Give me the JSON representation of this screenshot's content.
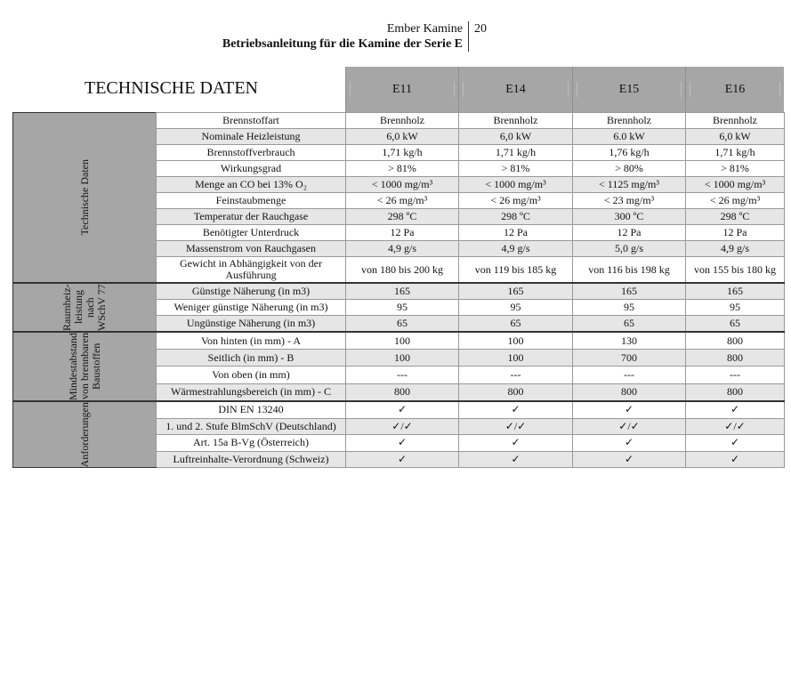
{
  "header": {
    "brand": "Ember Kamine",
    "subtitle": "Betriebsanleitung für die Kamine der Serie E",
    "page_number": "20"
  },
  "title": "TECHNISCHE DATEN",
  "models": [
    "E11",
    "E14",
    "E15",
    "E16"
  ],
  "groups": [
    {
      "category": "Technische Daten",
      "rows": [
        {
          "label": "Brennstoffart",
          "values": [
            "Brennholz",
            "Brennholz",
            "Brennholz",
            "Brennholz"
          ],
          "shaded": false
        },
        {
          "label": "Nominale Heizleistung",
          "values": [
            "6,0 kW",
            "6,0 kW",
            "6.0 kW",
            "6,0 kW"
          ],
          "shaded": true
        },
        {
          "label": "Brennstoffverbrauch",
          "values": [
            "1,71 kg/h",
            "1,71 kg/h",
            "1,76 kg/h",
            "1,71 kg/h"
          ],
          "shaded": false
        },
        {
          "label": "Wirkungsgrad",
          "values": [
            "> 81%",
            "> 81%",
            "> 80%",
            "> 81%"
          ],
          "shaded": false
        },
        {
          "label": "Menge an CO bei 13% O₂",
          "values": [
            "< 1000 mg/m³",
            "< 1000 mg/m³",
            "< 1125 mg/m³",
            "< 1000 mg/m³"
          ],
          "shaded": true
        },
        {
          "label": "Feinstaubmenge",
          "values": [
            "< 26 mg/m³",
            "< 26 mg/m³",
            "< 23 mg/m³",
            "< 26 mg/m³"
          ],
          "shaded": false
        },
        {
          "label": "Temperatur der Rauchgase",
          "values": [
            "298 ºC",
            "298 ºC",
            "300 ºC",
            "298 ºC"
          ],
          "shaded": true
        },
        {
          "label": "Benötigter Unterdruck",
          "values": [
            "12 Pa",
            "12 Pa",
            "12 Pa",
            "12 Pa"
          ],
          "shaded": false
        },
        {
          "label": "Massenstrom von Rauchgasen",
          "values": [
            "4,9 g/s",
            "4,9 g/s",
            "5,0 g/s",
            "4,9 g/s"
          ],
          "shaded": true
        },
        {
          "label": "Gewicht in Abhängigkeit von der Ausführung",
          "values": [
            "von 180 bis 200 kg",
            "von 119 bis 185 kg",
            "von 116 bis 198 kg",
            "von 155 bis 180 kg"
          ],
          "shaded": false,
          "tall": true
        }
      ]
    },
    {
      "category": "Raumheiz-leistung nach WSchV 77",
      "rows": [
        {
          "label": "Günstige Näherung (in m3)",
          "values": [
            "165",
            "165",
            "165",
            "165"
          ],
          "shaded": true
        },
        {
          "label": "Weniger günstige Näherung (in m3)",
          "values": [
            "95",
            "95",
            "95",
            "95"
          ],
          "shaded": false
        },
        {
          "label": "Ungünstige Näherung (in m3)",
          "values": [
            "65",
            "65",
            "65",
            "65"
          ],
          "shaded": true
        }
      ]
    },
    {
      "category": "Mindestabstand von brennbaren Baustoffen",
      "rows": [
        {
          "label": "Von hinten (in mm) - A",
          "values": [
            "100",
            "100",
            "130",
            "800"
          ],
          "shaded": false
        },
        {
          "label": "Seitlich (in mm) - B",
          "values": [
            "100",
            "100",
            "700",
            "800"
          ],
          "shaded": true
        },
        {
          "label": "Von oben (in mm)",
          "values": [
            "---",
            "---",
            "---",
            "---"
          ],
          "shaded": false
        },
        {
          "label": "Wärmestrahlungsbereich (in mm) - C",
          "values": [
            "800",
            "800",
            "800",
            "800"
          ],
          "shaded": true
        }
      ]
    },
    {
      "category": "Anforderungen",
      "rows": [
        {
          "label": "DIN EN 13240",
          "values": [
            "✓",
            "✓",
            "✓",
            "✓"
          ],
          "shaded": false
        },
        {
          "label": "1. und 2. Stufe BlmSchV (Deutschland)",
          "values": [
            "✓/✓",
            "✓/✓",
            "✓/✓",
            "✓/✓"
          ],
          "shaded": true
        },
        {
          "label": "Art. 15a B-Vg (Österreich)",
          "values": [
            "✓",
            "✓",
            "✓",
            "✓"
          ],
          "shaded": false
        },
        {
          "label": "Luftreinhalte-Verordnung (Schweiz)",
          "values": [
            "✓",
            "✓",
            "✓",
            "✓"
          ],
          "shaded": true
        }
      ]
    }
  ]
}
